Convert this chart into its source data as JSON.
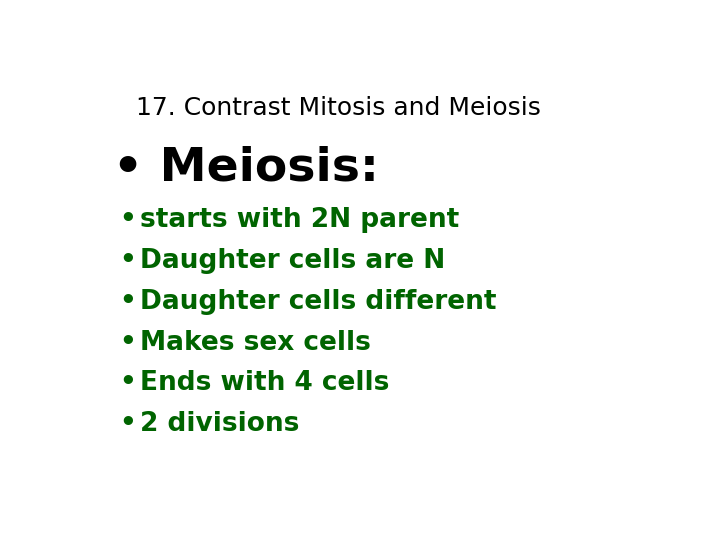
{
  "background_color": "#ffffff",
  "title": "17. Contrast Mitosis and Meiosis",
  "title_color": "#000000",
  "title_fontsize": 18,
  "title_fontweight": "normal",
  "heading": "• Meiosis:",
  "heading_color": "#000000",
  "heading_fontsize": 34,
  "bullet_color": "#006400",
  "bullet_fontsize": 19,
  "bullets": [
    "starts with 2N parent",
    "Daughter cells are N",
    "Daughter cells different",
    "Makes sex cells",
    "Ends with 4 cells",
    "2 divisions"
  ]
}
